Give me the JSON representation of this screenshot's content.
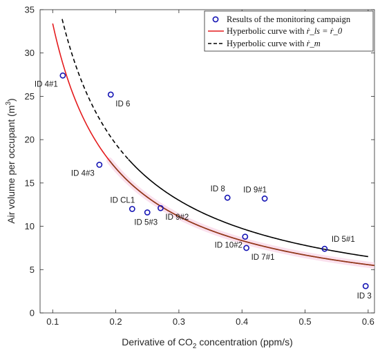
{
  "chart_data": {
    "type": "scatter",
    "xlabel_prefix": "Derivative of CO",
    "xlabel_sub": "2",
    "xlabel_suffix": " concentration (ppm/s)",
    "ylabel_prefix": "Air volume per occupant (m",
    "ylabel_sup": "3",
    "ylabel_suffix": ")",
    "xlim": [
      0.08,
      0.61
    ],
    "ylim": [
      0,
      35
    ],
    "xticks": [
      0.1,
      0.2,
      0.3,
      0.4,
      0.5,
      0.6
    ],
    "xtick_labels": [
      "0.1",
      "0.2",
      "0.3",
      "0.4",
      "0.5",
      "0.6"
    ],
    "yticks": [
      0,
      5,
      10,
      15,
      20,
      25,
      30,
      35
    ],
    "ytick_labels": [
      "0",
      "5",
      "10",
      "15",
      "20",
      "25",
      "30",
      "35"
    ],
    "grid": false,
    "legend_position": "top-right",
    "points": [
      {
        "label": "ID 4#1",
        "x": 0.116,
        "y": 27.4,
        "anchor": "below-left"
      },
      {
        "label": "ID 6",
        "x": 0.192,
        "y": 25.2,
        "anchor": "below-right"
      },
      {
        "label": "ID 4#3",
        "x": 0.174,
        "y": 17.1,
        "anchor": "below-left"
      },
      {
        "label": "ID CL1",
        "x": 0.226,
        "y": 12.0,
        "anchor": "above-left"
      },
      {
        "label": "ID 5#3",
        "x": 0.25,
        "y": 11.6,
        "anchor": "below"
      },
      {
        "label": "ID 9#2",
        "x": 0.271,
        "y": 12.1,
        "anchor": "below-right"
      },
      {
        "label": "ID 8",
        "x": 0.377,
        "y": 13.3,
        "anchor": "above-left"
      },
      {
        "label": "ID 9#1",
        "x": 0.436,
        "y": 13.2,
        "anchor": "above-left"
      },
      {
        "label": "ID 10#2",
        "x": 0.405,
        "y": 8.8,
        "anchor": "below-left"
      },
      {
        "label": "ID 7#1",
        "x": 0.407,
        "y": 7.5,
        "anchor": "below-right"
      },
      {
        "label": "ID 5#1",
        "x": 0.531,
        "y": 7.4,
        "anchor": "above-right"
      },
      {
        "label": "ID 3",
        "x": 0.596,
        "y": 3.1,
        "anchor": "below"
      }
    ],
    "series": [
      {
        "name": "Results of the monitoring campaign",
        "kind": "markers",
        "color": "#1414b4"
      },
      {
        "name": "Hyperbolic curve with",
        "math": "ṙ_ls = ṙ_0",
        "kind": "curve",
        "k": 3.34,
        "x_range": [
          0.1,
          0.61
        ],
        "color": "#e41a1c",
        "style": "solid"
      },
      {
        "name": "Hyperbolic curve with",
        "math": "ṙ_m",
        "kind": "curve",
        "k": 3.9,
        "x_range": [
          0.115,
          0.6
        ],
        "color": "#000000",
        "style": "dashed-then-solid",
        "dash_until_x": 0.22
      }
    ],
    "brown_overlay": {
      "x_range": [
        0.19,
        0.61
      ],
      "color": "#8b3a1a"
    }
  }
}
